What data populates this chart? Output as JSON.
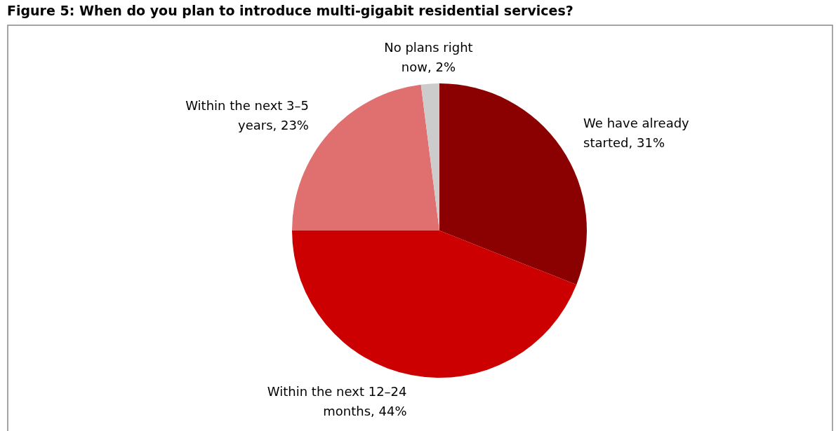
{
  "chart_data": {
    "type": "pie",
    "title": "Figure 5: When do you plan to introduce multi-gigabit residential services?",
    "categories": [
      "We have already\nstarted, 31%",
      "Within the next 12–24\nmonths, 44%",
      "Within the next 3–5\nyears, 23%",
      "No plans right\nnow, 2%"
    ],
    "values": [
      31,
      44,
      23,
      2
    ],
    "colors": [
      "#8b0000",
      "#cc0000",
      "#e07070",
      "#cccccc"
    ]
  }
}
